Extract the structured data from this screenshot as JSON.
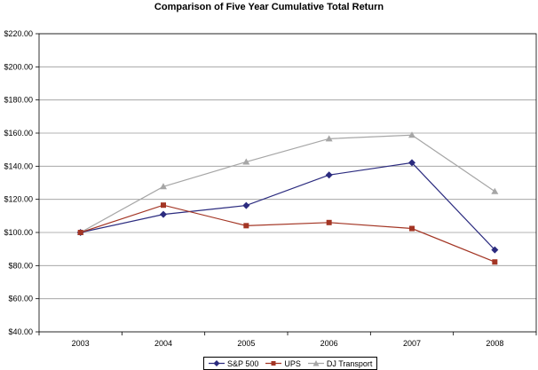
{
  "chart_data": {
    "type": "line",
    "title": "Comparison of Five Year Cumulative Total Return",
    "x": [
      "2003",
      "2004",
      "2005",
      "2006",
      "2007",
      "2008"
    ],
    "y_tick_labels": [
      "$40.00",
      "$60.00",
      "$80.00",
      "$100.00",
      "$120.00",
      "$140.00",
      "$160.00",
      "$180.00",
      "$200.00",
      "$220.00"
    ],
    "y_ticks": [
      40,
      60,
      80,
      100,
      120,
      140,
      160,
      180,
      200,
      220
    ],
    "ylim": [
      40,
      220
    ],
    "grid": true,
    "legend_position": "bottom",
    "series": [
      {
        "name": "S&P 500",
        "color": "#2b2b7f",
        "marker": "diamond",
        "values": [
          100,
          110.9,
          116.3,
          134.7,
          142.1,
          89.5
        ]
      },
      {
        "name": "UPS",
        "color": "#a33524",
        "marker": "square",
        "values": [
          100,
          116.5,
          104.1,
          106.0,
          102.4,
          82.2
        ]
      },
      {
        "name": "DJ Transport",
        "color": "#a6a6a6",
        "marker": "triangle",
        "values": [
          100,
          127.7,
          142.6,
          156.6,
          158.8,
          124.8
        ]
      }
    ]
  }
}
